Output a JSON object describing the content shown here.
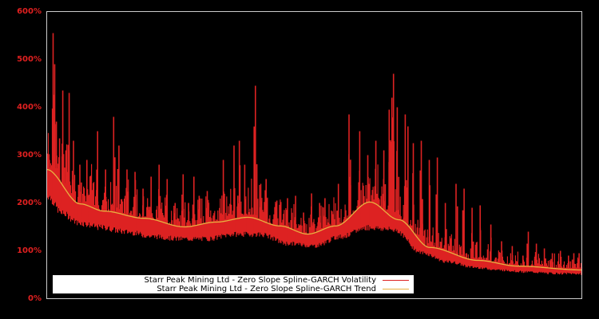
{
  "chart_data": {
    "type": "line",
    "title": "",
    "xlabel": "",
    "ylabel": "",
    "ylim": [
      0,
      600
    ],
    "y_ticks": [
      "0%",
      "100%",
      "200%",
      "300%",
      "400%",
      "500%",
      "600%"
    ],
    "y_tick_values": [
      0,
      100,
      200,
      300,
      400,
      500,
      600
    ],
    "x_ticks": [],
    "grid": false,
    "legend_position": "lower-left inside plot",
    "background": "#000000",
    "frame_color": "#cccccc",
    "tick_label_color": "#e02020",
    "series": [
      {
        "name": "Starr Peak Mining Ltd - Zero Slope Spline-GARCH Volatility",
        "color": "#dd2222",
        "style": "volatile filled spikes",
        "baseline_x": [
          0,
          0.03,
          0.06,
          0.1,
          0.15,
          0.2,
          0.25,
          0.3,
          0.35,
          0.4,
          0.45,
          0.5,
          0.55,
          0.6,
          0.65,
          0.7,
          0.75,
          0.8,
          0.85,
          0.9,
          0.95,
          1.0
        ],
        "baseline_values": [
          225,
          185,
          165,
          155,
          145,
          135,
          130,
          130,
          140,
          140,
          120,
          115,
          135,
          155,
          150,
          100,
          80,
          68,
          62,
          58,
          55,
          54
        ],
        "spikes": [
          {
            "x": 0.005,
            "v": 290
          },
          {
            "x": 0.012,
            "v": 555
          },
          {
            "x": 0.015,
            "v": 490
          },
          {
            "x": 0.018,
            "v": 370
          },
          {
            "x": 0.024,
            "v": 335
          },
          {
            "x": 0.03,
            "v": 435
          },
          {
            "x": 0.036,
            "v": 310
          },
          {
            "x": 0.042,
            "v": 430
          },
          {
            "x": 0.05,
            "v": 330
          },
          {
            "x": 0.062,
            "v": 280
          },
          {
            "x": 0.075,
            "v": 290
          },
          {
            "x": 0.095,
            "v": 350
          },
          {
            "x": 0.11,
            "v": 270
          },
          {
            "x": 0.125,
            "v": 380
          },
          {
            "x": 0.135,
            "v": 320
          },
          {
            "x": 0.15,
            "v": 270
          },
          {
            "x": 0.165,
            "v": 265
          },
          {
            "x": 0.18,
            "v": 230
          },
          {
            "x": 0.195,
            "v": 255
          },
          {
            "x": 0.21,
            "v": 280
          },
          {
            "x": 0.225,
            "v": 250
          },
          {
            "x": 0.24,
            "v": 200
          },
          {
            "x": 0.255,
            "v": 260
          },
          {
            "x": 0.265,
            "v": 200
          },
          {
            "x": 0.275,
            "v": 255
          },
          {
            "x": 0.285,
            "v": 215
          },
          {
            "x": 0.3,
            "v": 225
          },
          {
            "x": 0.33,
            "v": 290
          },
          {
            "x": 0.35,
            "v": 320
          },
          {
            "x": 0.36,
            "v": 330
          },
          {
            "x": 0.37,
            "v": 280
          },
          {
            "x": 0.39,
            "v": 445
          },
          {
            "x": 0.4,
            "v": 240
          },
          {
            "x": 0.41,
            "v": 250
          },
          {
            "x": 0.43,
            "v": 205
          },
          {
            "x": 0.45,
            "v": 210
          },
          {
            "x": 0.465,
            "v": 215
          },
          {
            "x": 0.48,
            "v": 180
          },
          {
            "x": 0.495,
            "v": 220
          },
          {
            "x": 0.51,
            "v": 200
          },
          {
            "x": 0.52,
            "v": 210
          },
          {
            "x": 0.545,
            "v": 240
          },
          {
            "x": 0.565,
            "v": 385
          },
          {
            "x": 0.585,
            "v": 350
          },
          {
            "x": 0.6,
            "v": 300
          },
          {
            "x": 0.615,
            "v": 330
          },
          {
            "x": 0.63,
            "v": 310
          },
          {
            "x": 0.64,
            "v": 395
          },
          {
            "x": 0.645,
            "v": 420
          },
          {
            "x": 0.648,
            "v": 470
          },
          {
            "x": 0.655,
            "v": 400
          },
          {
            "x": 0.67,
            "v": 385
          },
          {
            "x": 0.675,
            "v": 360
          },
          {
            "x": 0.685,
            "v": 325
          },
          {
            "x": 0.7,
            "v": 330
          },
          {
            "x": 0.715,
            "v": 290
          },
          {
            "x": 0.73,
            "v": 295
          },
          {
            "x": 0.745,
            "v": 200
          },
          {
            "x": 0.765,
            "v": 240
          },
          {
            "x": 0.78,
            "v": 230
          },
          {
            "x": 0.795,
            "v": 190
          },
          {
            "x": 0.81,
            "v": 195
          },
          {
            "x": 0.83,
            "v": 155
          },
          {
            "x": 0.85,
            "v": 120
          },
          {
            "x": 0.87,
            "v": 110
          },
          {
            "x": 0.89,
            "v": 90
          },
          {
            "x": 0.9,
            "v": 140
          },
          {
            "x": 0.915,
            "v": 115
          },
          {
            "x": 0.93,
            "v": 105
          },
          {
            "x": 0.945,
            "v": 95
          },
          {
            "x": 0.96,
            "v": 100
          },
          {
            "x": 0.975,
            "v": 90
          },
          {
            "x": 0.985,
            "v": 95
          },
          {
            "x": 0.995,
            "v": 95
          }
        ]
      },
      {
        "name": "Starr Peak Mining Ltd - Zero Slope Spline-GARCH Trend",
        "color": "#e8b040",
        "style": "smooth line",
        "x": [
          0,
          0.063,
          0.107,
          0.182,
          0.257,
          0.316,
          0.376,
          0.436,
          0.488,
          0.54,
          0.604,
          0.658,
          0.716,
          0.806,
          0.881,
          1.0
        ],
        "values": [
          270,
          198,
          183,
          168,
          150,
          160,
          170,
          152,
          135,
          152,
          202,
          165,
          107,
          80,
          68,
          60
        ]
      }
    ]
  },
  "legend": {
    "items": [
      {
        "label": "Starr Peak Mining Ltd - Zero Slope Spline-GARCH Volatility",
        "color": "#dd2222"
      },
      {
        "label": "Starr Peak Mining Ltd - Zero Slope Spline-GARCH Trend",
        "color": "#e8b040"
      }
    ]
  }
}
